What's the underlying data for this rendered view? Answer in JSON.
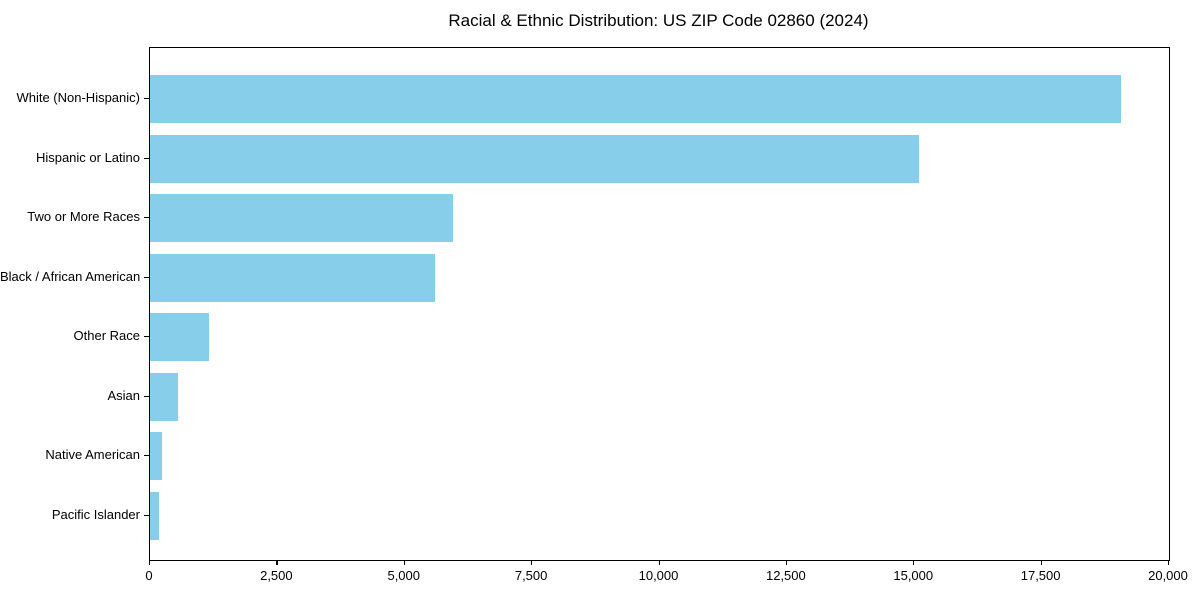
{
  "chart_data": {
    "type": "bar",
    "orientation": "horizontal",
    "title": "Racial & Ethnic Distribution: US ZIP Code 02860 (2024)",
    "categories": [
      "White (Non-Hispanic)",
      "Hispanic or Latino",
      "Two or More Races",
      "Black / African American",
      "Other Race",
      "Asian",
      "Native American",
      "Pacific Islander"
    ],
    "values": [
      19050,
      15100,
      5950,
      5600,
      1150,
      550,
      230,
      180
    ],
    "xlabel": "",
    "ylabel": "",
    "xlim": [
      0,
      20000
    ],
    "x_ticks": [
      0,
      2500,
      5000,
      7500,
      10000,
      12500,
      15000,
      17500,
      20000
    ],
    "x_tick_labels": [
      "0",
      "2,500",
      "5,000",
      "7,500",
      "10,000",
      "12,500",
      "15,000",
      "17,500",
      "20,000"
    ],
    "bar_color": "#87CEEB",
    "grid": false,
    "legend": false,
    "frame": "full-box"
  }
}
